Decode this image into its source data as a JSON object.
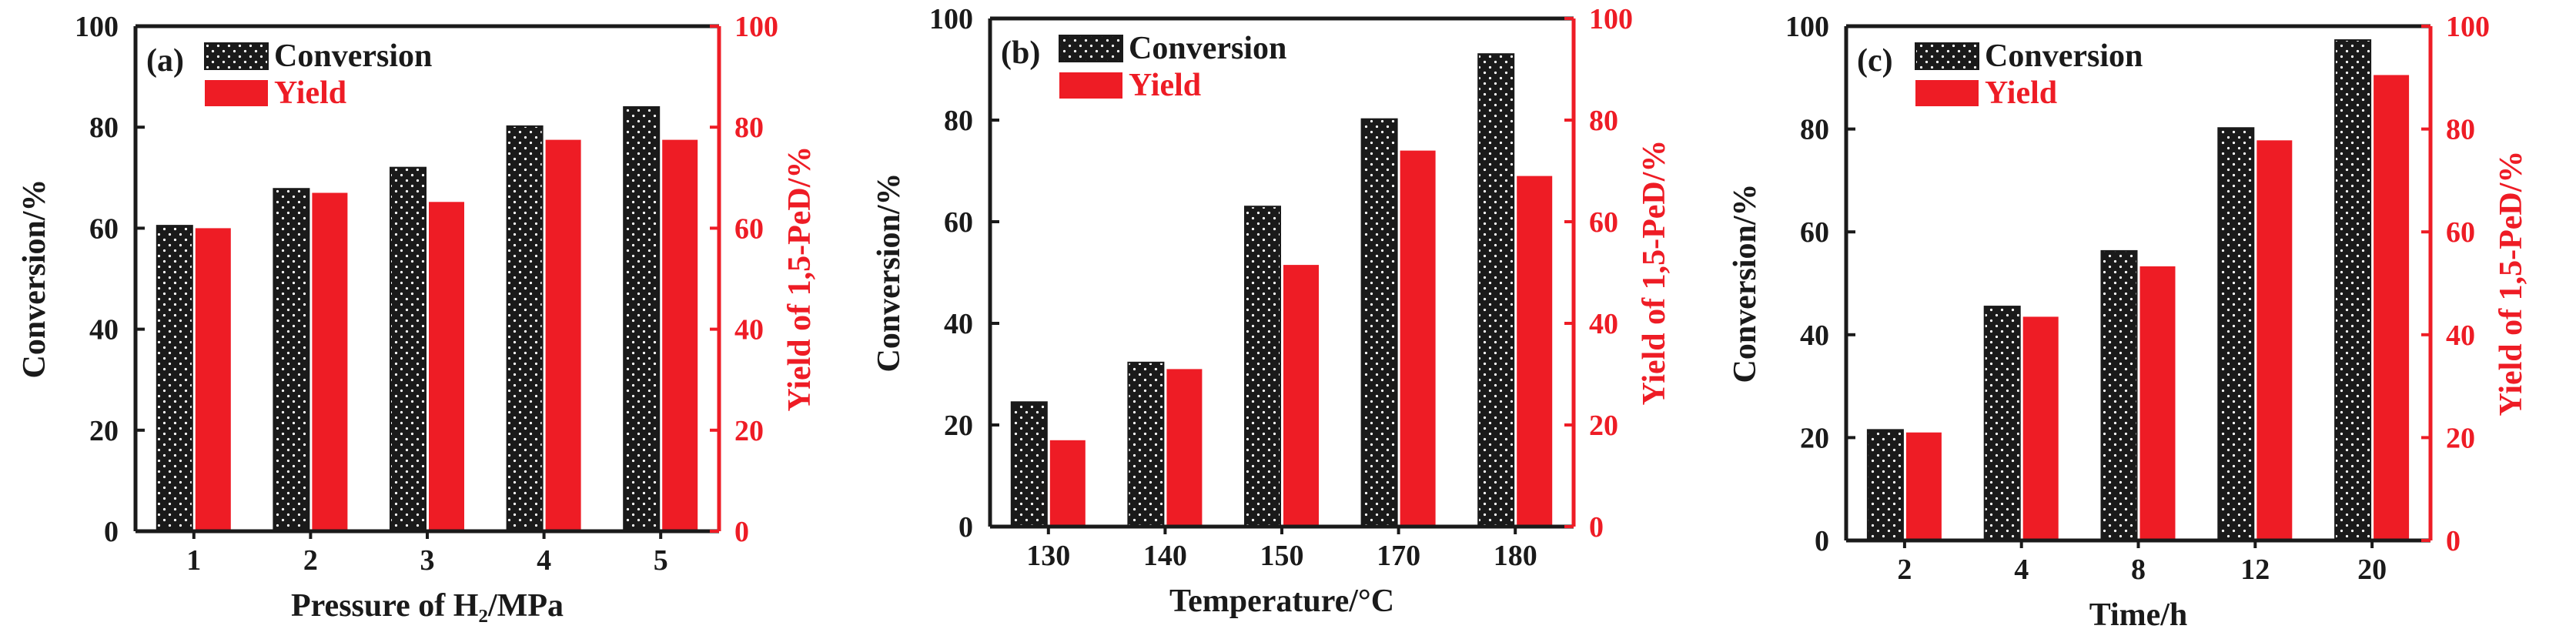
{
  "colors": {
    "conversion": "#1a1a1a",
    "conversion_dots": "#ffffff",
    "yield": "#ee1c25",
    "left_axis": "#1a1a1a",
    "right_axis": "#ee1c25"
  },
  "chart_data": [
    {
      "type": "bar",
      "panel_label": "(a)",
      "categories": [
        "1",
        "2",
        "3",
        "4",
        "5"
      ],
      "xlabel": "Pressure of H₂/MPa",
      "ylabel": "Conversion/%",
      "y2label": "Yield of 1,5-PeD/%",
      "ylim": [
        0,
        100
      ],
      "y2lim": [
        0,
        100
      ],
      "yticks": [
        0,
        20,
        40,
        60,
        80,
        100
      ],
      "legend_position": "top-left",
      "series": [
        {
          "name": "Conversion",
          "axis": "left",
          "values": [
            60.5,
            67.8,
            72,
            80.2,
            84
          ]
        },
        {
          "name": "Yield",
          "axis": "right",
          "values": [
            60,
            67,
            65.2,
            77.5,
            77.5
          ]
        }
      ]
    },
    {
      "type": "bar",
      "panel_label": "(b)",
      "categories": [
        "130",
        "140",
        "150",
        "170",
        "180"
      ],
      "xlabel": "Temperature/°C",
      "ylabel": "Conversion/%",
      "y2label": "Yield of 1,5-PeD/%",
      "ylim": [
        0,
        100
      ],
      "y2lim": [
        0,
        100
      ],
      "yticks": [
        0,
        20,
        40,
        60,
        80,
        100
      ],
      "legend_position": "top-left",
      "series": [
        {
          "name": "Conversion",
          "axis": "left",
          "values": [
            24.5,
            32.3,
            63,
            80.2,
            93
          ]
        },
        {
          "name": "Yield",
          "axis": "right",
          "values": [
            17,
            31,
            51.5,
            74,
            69
          ]
        }
      ]
    },
    {
      "type": "bar",
      "panel_label": "(c)",
      "categories": [
        "2",
        "4",
        "8",
        "12",
        "20"
      ],
      "xlabel": "Time/h",
      "ylabel": "Conversion/%",
      "y2label": "Yield of 1,5-PeD/%",
      "ylim": [
        0,
        100
      ],
      "y2lim": [
        0,
        100
      ],
      "yticks": [
        0,
        20,
        40,
        60,
        80,
        100
      ],
      "legend_position": "top-left",
      "series": [
        {
          "name": "Conversion",
          "axis": "left",
          "values": [
            21.5,
            45.5,
            56.3,
            80.2,
            97.3
          ]
        },
        {
          "name": "Yield",
          "axis": "right",
          "values": [
            21,
            43.5,
            53.3,
            77.8,
            90.5
          ]
        }
      ]
    }
  ]
}
